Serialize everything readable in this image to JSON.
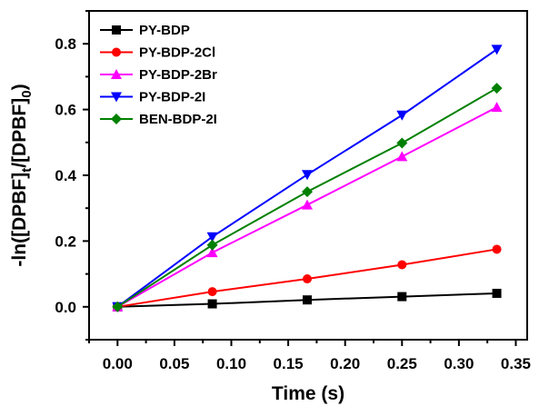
{
  "chart_data": {
    "type": "line",
    "xlabel": "Time (s)",
    "ylabel": {
      "text": "-ln([DPBF]t/[DPBF]0)",
      "parts": [
        "-ln([DPBF]",
        "t",
        "/[DPBF]",
        "0",
        ")"
      ]
    },
    "x": [
      0.0,
      0.0833,
      0.1667,
      0.25,
      0.3333
    ],
    "xlim": [
      -0.025,
      0.36
    ],
    "ylim": [
      -0.1,
      0.9
    ],
    "xticks": [
      {
        "value": 0.0,
        "label": "0.00"
      },
      {
        "value": 0.05,
        "label": "0.05"
      },
      {
        "value": 0.1,
        "label": "0.10"
      },
      {
        "value": 0.15,
        "label": "0.15"
      },
      {
        "value": 0.2,
        "label": "0.20"
      },
      {
        "value": 0.25,
        "label": "0.25"
      },
      {
        "value": 0.3,
        "label": "0.30"
      },
      {
        "value": 0.35,
        "label": "0.35"
      }
    ],
    "yticks": [
      {
        "value": 0.0,
        "label": "0.0"
      },
      {
        "value": 0.2,
        "label": "0.2"
      },
      {
        "value": 0.4,
        "label": "0.4"
      },
      {
        "value": 0.6,
        "label": "0.6"
      },
      {
        "value": 0.8,
        "label": "0.8"
      }
    ],
    "grid": false,
    "legend_position": "top-left",
    "series": [
      {
        "name": "PY-BDP",
        "color": "#000000",
        "marker": "square",
        "values": [
          0.0,
          0.009,
          0.021,
          0.031,
          0.041
        ]
      },
      {
        "name": "PY-BDP-2Cl",
        "color": "#ff0000",
        "marker": "circle",
        "values": [
          0.0,
          0.046,
          0.085,
          0.128,
          0.175
        ]
      },
      {
        "name": "PY-BDP-2Br",
        "color": "#ff00ff",
        "marker": "triangle-up",
        "values": [
          0.0,
          0.165,
          0.31,
          0.457,
          0.607
        ]
      },
      {
        "name": "PY-BDP-2I",
        "color": "#0000ff",
        "marker": "triangle-down",
        "values": [
          0.0,
          0.213,
          0.402,
          0.583,
          0.783
        ]
      },
      {
        "name": "BEN-BDP-2I",
        "color": "#008000",
        "marker": "diamond",
        "values": [
          0.0,
          0.188,
          0.35,
          0.498,
          0.665
        ]
      }
    ]
  }
}
